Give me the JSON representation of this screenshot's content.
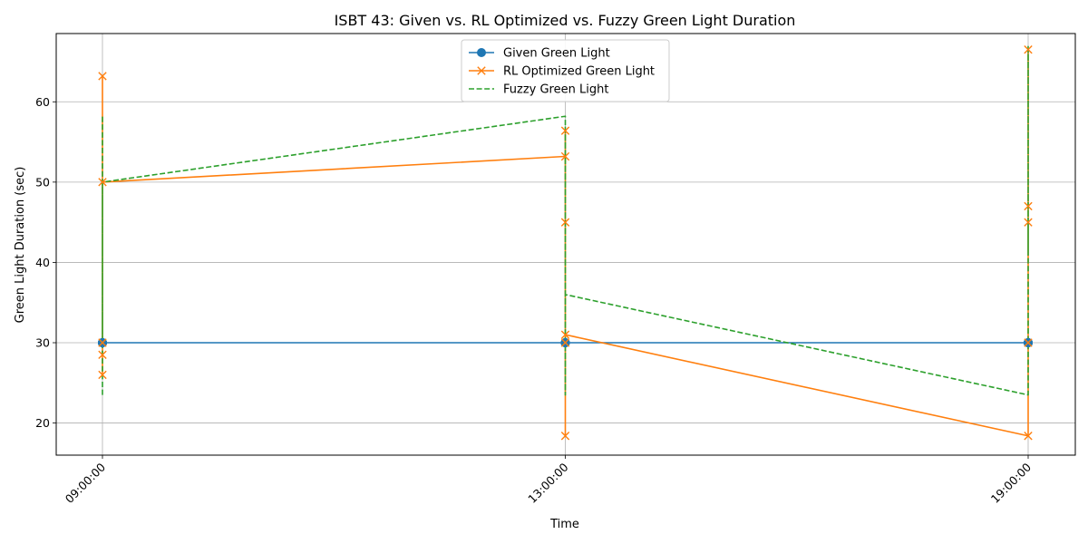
{
  "chart_data": {
    "type": "line",
    "title": "ISBT 43: Given vs. RL Optimized vs. Fuzzy Green Light Duration",
    "xlabel": "Time",
    "ylabel": "Green Light Duration (sec)",
    "categories": [
      "09:00:00",
      "13:00:00",
      "19:00:00"
    ],
    "ylim": [
      16,
      68.5
    ],
    "yticks": [
      20,
      30,
      40,
      50,
      60
    ],
    "grid": true,
    "legend_position": "top-center",
    "series": [
      {
        "name": "Given Green Light",
        "color": "#1f77b4",
        "marker": "circle",
        "dash": "solid",
        "points": [
          {
            "x": "09:00:00",
            "y": 30
          },
          {
            "x": "09:00:00",
            "y": 30
          },
          {
            "x": "09:00:00",
            "y": 30
          },
          {
            "x": "09:00:00",
            "y": 30
          },
          {
            "x": "09:00:00",
            "y": 30
          },
          {
            "x": "09:00:00",
            "y": 30
          },
          {
            "x": "13:00:00",
            "y": 30
          },
          {
            "x": "13:00:00",
            "y": 30
          },
          {
            "x": "13:00:00",
            "y": 30
          },
          {
            "x": "13:00:00",
            "y": 30
          },
          {
            "x": "13:00:00",
            "y": 30
          },
          {
            "x": "13:00:00",
            "y": 30
          },
          {
            "x": "19:00:00",
            "y": 30
          },
          {
            "x": "19:00:00",
            "y": 30
          },
          {
            "x": "19:00:00",
            "y": 30
          },
          {
            "x": "19:00:00",
            "y": 30
          },
          {
            "x": "19:00:00",
            "y": 30
          },
          {
            "x": "19:00:00",
            "y": 30
          }
        ]
      },
      {
        "name": "RL Optimized Green Light",
        "color": "#ff7f0e",
        "marker": "x",
        "dash": "solid",
        "points": [
          {
            "x": "09:00:00",
            "y": 26
          },
          {
            "x": "09:00:00",
            "y": 63.2
          },
          {
            "x": "09:00:00",
            "y": 28.5
          },
          {
            "x": "09:00:00",
            "y": 30
          },
          {
            "x": "09:00:00",
            "y": 50
          },
          {
            "x": "13:00:00",
            "y": 53.2
          },
          {
            "x": "13:00:00",
            "y": 18.4
          },
          {
            "x": "13:00:00",
            "y": 56.4
          },
          {
            "x": "13:00:00",
            "y": 45
          },
          {
            "x": "13:00:00",
            "y": 30
          },
          {
            "x": "13:00:00",
            "y": 31
          },
          {
            "x": "19:00:00",
            "y": 18.4
          },
          {
            "x": "19:00:00",
            "y": 66.5
          },
          {
            "x": "19:00:00",
            "y": 45
          },
          {
            "x": "19:00:00",
            "y": 47
          },
          {
            "x": "19:00:00",
            "y": 30
          }
        ]
      },
      {
        "name": "Fuzzy Green Light",
        "color": "#2ca02c",
        "marker": "none",
        "dash": "dashed",
        "points": [
          {
            "x": "09:00:00",
            "y": 23.5
          },
          {
            "x": "09:00:00",
            "y": 58.3
          },
          {
            "x": "09:00:00",
            "y": 30
          },
          {
            "x": "09:00:00",
            "y": 50
          },
          {
            "x": "13:00:00",
            "y": 58.2
          },
          {
            "x": "13:00:00",
            "y": 23.5
          },
          {
            "x": "13:00:00",
            "y": 57
          },
          {
            "x": "13:00:00",
            "y": 36
          },
          {
            "x": "19:00:00",
            "y": 23.5
          },
          {
            "x": "19:00:00",
            "y": 67
          },
          {
            "x": "19:00:00",
            "y": 41
          },
          {
            "x": "19:00:00",
            "y": 45
          }
        ]
      }
    ]
  }
}
